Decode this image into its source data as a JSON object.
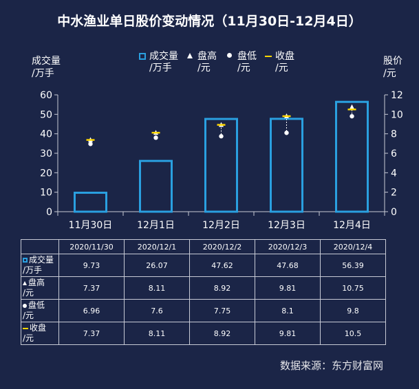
{
  "title": "中水渔业单日股价变动情况（11月30日-12月4日）",
  "source": "数据来源：东方财富网",
  "colors": {
    "background": "#1b2547",
    "bar_stroke": "#2aa0e0",
    "marker_white": "#ffffff",
    "close_yellow": "#ffd700"
  },
  "chart_data": {
    "type": "bar",
    "categories": [
      "11月30日",
      "12月1日",
      "12月2日",
      "12月3日",
      "12月4日"
    ],
    "left_axis_title": [
      "成交量",
      "/万手"
    ],
    "right_axis_title": [
      "股价",
      "/元"
    ],
    "left_ylim": [
      0,
      60
    ],
    "left_ticks": [
      0,
      10,
      20,
      30,
      40,
      50,
      60
    ],
    "right_ylim": [
      0,
      12
    ],
    "right_ticks": [
      0,
      2,
      4,
      6,
      8,
      10,
      12
    ],
    "legend_position": "top",
    "series": [
      {
        "name": "成交量/万手",
        "axis": "left",
        "kind": "bar",
        "values": [
          9.73,
          26.07,
          47.62,
          47.68,
          56.39
        ]
      },
      {
        "name": "盘高/元",
        "axis": "right",
        "kind": "triangle",
        "values": [
          7.37,
          8.11,
          8.92,
          9.81,
          10.75
        ]
      },
      {
        "name": "盘低/元",
        "axis": "right",
        "kind": "dot",
        "values": [
          6.96,
          7.6,
          7.75,
          8.1,
          9.8
        ]
      },
      {
        "name": "收盘/元",
        "axis": "right",
        "kind": "dash",
        "values": [
          7.37,
          8.11,
          8.92,
          9.81,
          10.5
        ]
      }
    ]
  },
  "legend": [
    {
      "line1": "成交量",
      "line2": "/万手"
    },
    {
      "line1": "盘高",
      "line2": "/元"
    },
    {
      "line1": "盘低",
      "line2": "/元"
    },
    {
      "line1": "收盘",
      "line2": "/元"
    }
  ],
  "table": {
    "header": [
      "2020/11/30",
      "2020/12/1",
      "2020/12/2",
      "2020/12/3",
      "2020/12/4"
    ],
    "rows": [
      {
        "line1": "成交量",
        "line2": "/万手",
        "values": [
          "9.73",
          "26.07",
          "47.62",
          "47.68",
          "56.39"
        ]
      },
      {
        "line1": "盘高",
        "line2": "/元",
        "values": [
          "7.37",
          "8.11",
          "8.92",
          "9.81",
          "10.75"
        ]
      },
      {
        "line1": "盘低",
        "line2": "/元",
        "values": [
          "6.96",
          "7.6",
          "7.75",
          "8.1",
          "9.8"
        ]
      },
      {
        "line1": "收盘",
        "line2": "/元",
        "values": [
          "7.37",
          "8.11",
          "8.92",
          "9.81",
          "10.5"
        ]
      }
    ]
  }
}
